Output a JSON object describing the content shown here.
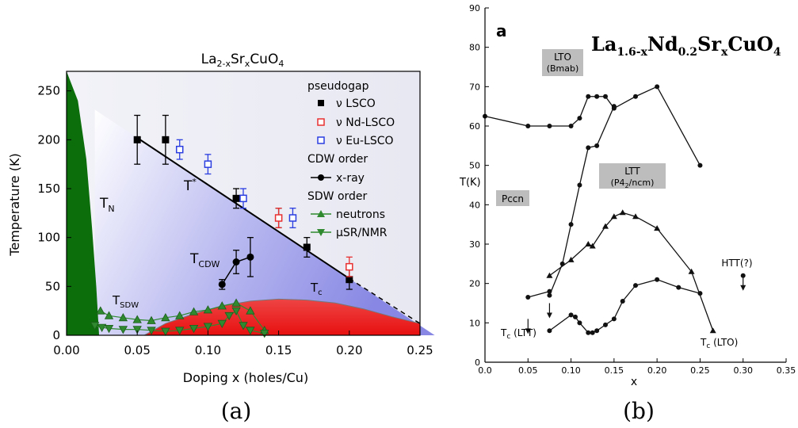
{
  "captions": {
    "a": "(a)",
    "b": "(b)"
  },
  "chart_data": [
    {
      "type": "scatter",
      "panel": "a",
      "title_parts": {
        "base1": "La",
        "sub1": "2-x",
        "base2": "Sr",
        "sub2": "x",
        "base3": "CuO",
        "sub3": "4"
      },
      "xlabel": "Doping x (holes/Cu)",
      "ylabel": "Temperature (K)",
      "xlim": [
        0,
        0.25
      ],
      "ylim": [
        0,
        270
      ],
      "xticks": [
        "0.00",
        "0.05",
        "0.10",
        "0.15",
        "0.20",
        "0.25"
      ],
      "yticks": [
        "0",
        "50",
        "100",
        "150",
        "200",
        "250"
      ],
      "region_labels": {
        "tn": {
          "base": "T",
          "sub": "N"
        },
        "tstar": {
          "base": "T",
          "sup": "*"
        },
        "tcdw": {
          "base": "T",
          "sub": "CDW"
        },
        "tsdw": {
          "base": "T",
          "sub": "SDW"
        },
        "tc": {
          "base": "T",
          "sub": "c"
        }
      },
      "legend": {
        "placement": "top-right",
        "pseudogap_header": "pseudogap",
        "lsco": "ν LSCO",
        "nd": "ν Nd-LSCO",
        "eu": "ν Eu-LSCO",
        "cdw_header": "CDW order",
        "xray": "x-ray",
        "sdw_header": "SDW order",
        "neutrons": "neutrons",
        "musr": "μSR/NMR"
      },
      "colors": {
        "neel": "#0b6e0b",
        "pseudogap": "#8c8ce6",
        "sc": "#ee2222",
        "lsco": "#000000",
        "nd": "#e83030",
        "eu": "#2a3ee0",
        "sdw": "#2f8a2f"
      },
      "tn_boundary": {
        "x": [
          0,
          0.008,
          0.014,
          0.018,
          0.021,
          0.023
        ],
        "y": [
          270,
          240,
          180,
          110,
          50,
          0
        ]
      },
      "tc_dome": {
        "x": [
          0.055,
          0.07,
          0.09,
          0.11,
          0.13,
          0.15,
          0.17,
          0.19,
          0.21,
          0.23,
          0.25
        ],
        "y": [
          0,
          12,
          22,
          30,
          35,
          37,
          36,
          33,
          27,
          19,
          12
        ]
      },
      "tstar_line": {
        "x": [
          0.05,
          0.2
        ],
        "y": [
          202,
          58
        ],
        "dash_to": [
          0.25,
          12
        ]
      },
      "lsco": {
        "x": [
          0.05,
          0.07,
          0.12,
          0.15,
          0.17,
          0.2
        ],
        "y": [
          200,
          200,
          140,
          120,
          90,
          57
        ],
        "err": [
          25,
          25,
          10,
          10,
          10,
          10
        ]
      },
      "nd_lsco": {
        "x": [
          0.15,
          0.2
        ],
        "y": [
          120,
          70
        ],
        "err": [
          10,
          10
        ]
      },
      "eu_lsco": {
        "x": [
          0.08,
          0.1,
          0.125,
          0.16
        ],
        "y": [
          190,
          175,
          140,
          120
        ],
        "err": [
          10,
          10,
          10,
          10
        ]
      },
      "cdw": {
        "x": [
          0.11,
          0.12,
          0.13
        ],
        "y": [
          52,
          75,
          80
        ],
        "err": [
          5,
          12,
          20
        ]
      },
      "neutrons": {
        "x": [
          0.024,
          0.03,
          0.04,
          0.05,
          0.06,
          0.07,
          0.08,
          0.09,
          0.1,
          0.11,
          0.12,
          0.13,
          0.14
        ],
        "y": [
          25,
          20,
          18,
          16,
          15,
          18,
          20,
          24,
          26,
          30,
          33,
          25,
          5
        ]
      },
      "musr": {
        "x": [
          0.02,
          0.025,
          0.03,
          0.04,
          0.05,
          0.06,
          0.07,
          0.08,
          0.09,
          0.1,
          0.11,
          0.115,
          0.12,
          0.125,
          0.13,
          0.14
        ],
        "y": [
          10,
          8,
          7,
          6,
          6,
          5,
          4,
          5,
          7,
          9,
          12,
          20,
          25,
          10,
          5,
          2
        ]
      }
    },
    {
      "type": "line",
      "panel": "b",
      "label_letter": "a",
      "formula_parts": {
        "base1": "La",
        "sub1": "1.6-x",
        "base2": "Nd",
        "sub2": "0.2",
        "base3": "Sr",
        "sub3": "x",
        "base4": "CuO",
        "sub4": "4"
      },
      "xlabel": "x",
      "ylabel": "T(K)",
      "xlim": [
        0,
        0.35
      ],
      "ylim": [
        0,
        90
      ],
      "xticks": [
        "0.0",
        "0.05",
        "0.10",
        "0.15",
        "0.20",
        "0.25",
        "0.30",
        "0.35"
      ],
      "yticks": [
        "0",
        "10",
        "20",
        "30",
        "40",
        "50",
        "60",
        "70",
        "80",
        "90"
      ],
      "phase_boxes": {
        "lto1": "LTO",
        "lto2": "(Bmab)",
        "ltt1": "LTT",
        "ltt2": "(P4",
        "ltt2_sub": "2",
        "ltt2_end": "/ncm)",
        "pccn": "Pccn"
      },
      "annotations": {
        "htt": "HTT(?)",
        "tc_ltt": "T",
        "tc_ltt_sub": "c",
        "tc_ltt_end": " (LTT)",
        "tc_lto": "T",
        "tc_lto_sub": "c",
        "tc_lto_end": " (LTO)"
      },
      "series": [
        {
          "marker": "circle",
          "x": [
            0,
            0.05,
            0.075,
            0.1,
            0.11,
            0.12,
            0.13,
            0.14,
            0.15,
            0.175,
            0.2,
            0.25
          ],
          "y": [
            62.5,
            60,
            60,
            60,
            62,
            67.5,
            67.5,
            67.5,
            64.5,
            67.5,
            70,
            50
          ]
        },
        {
          "marker": "circle",
          "x": [
            0.075,
            0.09,
            0.1,
            0.11,
            0.12,
            0.13,
            0.15
          ],
          "y": [
            17,
            25,
            35,
            45,
            54.5,
            55,
            65
          ]
        },
        {
          "marker": "triangle",
          "x": [
            0.075,
            0.1,
            0.12,
            0.125,
            0.14,
            0.15,
            0.16,
            0.175,
            0.2,
            0.24,
            0.265
          ],
          "y": [
            22,
            26,
            30,
            29.5,
            34.5,
            37,
            38,
            37,
            34,
            23,
            8
          ]
        },
        {
          "marker": "circle",
          "x": [
            0.05,
            0.075
          ],
          "y": [
            16.5,
            18
          ]
        },
        {
          "marker": "circle",
          "x": [
            0.075,
            0.1,
            0.105,
            0.11,
            0.12,
            0.125,
            0.13,
            0.14,
            0.15,
            0.16,
            0.175,
            0.2,
            0.225,
            0.25
          ],
          "y": [
            8,
            12,
            11.5,
            10,
            7.5,
            7.5,
            8,
            9.5,
            11,
            15.5,
            19.5,
            21,
            19,
            17.5
          ]
        }
      ],
      "down_arrows": {
        "x": [
          0.05,
          0.075,
          0.3
        ],
        "y": [
          11,
          15,
          22
        ]
      }
    }
  ]
}
